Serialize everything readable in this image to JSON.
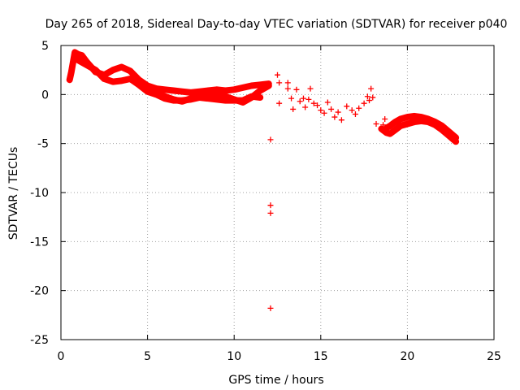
{
  "chart_data": {
    "type": "scatter",
    "title": "Day 265 of 2018, Sidereal Day-to-day VTEC variation (SDTVAR) for receiver p040",
    "xlabel": "GPS time / hours",
    "ylabel": "SDTVAR / TECUs",
    "xlim": [
      0,
      25
    ],
    "ylim": [
      -25,
      5
    ],
    "xticks": [
      0,
      5,
      10,
      15,
      20,
      25
    ],
    "yticks": [
      5,
      0,
      -5,
      -10,
      -15,
      -20,
      -25
    ],
    "grid": true,
    "marker": "+",
    "series": [
      {
        "name": "SDTVAR",
        "color": "#ff0000",
        "bands": [
          {
            "x": [
              0.5,
              0.6,
              0.8,
              1.0,
              1.2,
              1.5,
              1.8,
              2.0,
              2.5,
              3.0,
              3.5,
              4.0,
              4.5,
              5.0,
              5.5,
              6.0,
              6.5,
              7.0,
              7.5,
              8.0,
              8.5,
              9.0,
              9.5,
              10.0,
              10.5,
              11.0,
              11.5,
              12.0
            ],
            "y": [
              1.5,
              2.3,
              4.3,
              4.1,
              4.0,
              3.3,
              2.7,
              2.3,
              2.0,
              2.5,
              2.8,
              2.4,
              1.5,
              0.9,
              0.6,
              0.5,
              0.4,
              0.3,
              0.2,
              0.3,
              0.4,
              0.5,
              0.4,
              0.5,
              0.7,
              0.9,
              1.0,
              1.1
            ]
          },
          {
            "x": [
              1.0,
              1.5,
              2.0,
              2.5,
              3.0,
              3.5,
              4.0,
              4.5,
              5.0,
              5.5,
              6.0,
              6.5,
              7.0,
              7.5,
              8.0,
              8.5,
              9.0,
              9.5,
              10.0,
              10.5,
              11.0,
              11.5
            ],
            "y": [
              3.5,
              3.0,
              2.5,
              1.6,
              1.3,
              1.4,
              1.6,
              1.0,
              0.3,
              0.0,
              -0.4,
              -0.6,
              -0.6,
              -0.5,
              -0.3,
              -0.4,
              -0.5,
              -0.6,
              -0.6,
              -0.6,
              -0.2,
              -0.3
            ]
          },
          {
            "x": [
              5.5,
              6.0,
              6.5,
              7.0,
              7.5,
              8.0,
              8.5,
              9.0,
              9.5,
              10.0,
              10.5,
              11.0,
              11.5,
              12.0
            ],
            "y": [
              0.2,
              -0.2,
              -0.5,
              -0.7,
              -0.4,
              0.0,
              0.2,
              0.1,
              -0.2,
              -0.5,
              -0.8,
              -0.3,
              0.4,
              0.9
            ]
          },
          {
            "x": [
              18.5,
              18.8,
              19.0,
              19.3,
              19.6,
              20.0,
              20.4,
              20.8,
              21.2,
              21.6,
              22.0,
              22.4,
              22.8
            ],
            "y": [
              -3.5,
              -3.9,
              -4.0,
              -3.6,
              -3.2,
              -3.0,
              -2.8,
              -2.7,
              -2.8,
              -3.1,
              -3.6,
              -4.2,
              -4.8
            ]
          },
          {
            "x": [
              18.8,
              19.0,
              19.3,
              19.6,
              20.0,
              20.4,
              20.8,
              21.2,
              21.6,
              22.0,
              22.4,
              22.8
            ],
            "y": [
              -3.4,
              -3.2,
              -2.8,
              -2.5,
              -2.3,
              -2.2,
              -2.3,
              -2.5,
              -2.8,
              -3.2,
              -3.8,
              -4.4
            ]
          }
        ],
        "points": [
          {
            "x": 12.1,
            "y": -4.6
          },
          {
            "x": 12.1,
            "y": -11.3
          },
          {
            "x": 12.1,
            "y": -12.1
          },
          {
            "x": 12.1,
            "y": -21.8
          },
          {
            "x": 12.5,
            "y": 2.0
          },
          {
            "x": 12.6,
            "y": 1.2
          },
          {
            "x": 12.6,
            "y": -0.9
          },
          {
            "x": 13.1,
            "y": 1.2
          },
          {
            "x": 13.1,
            "y": 0.6
          },
          {
            "x": 13.3,
            "y": -0.4
          },
          {
            "x": 13.4,
            "y": -1.5
          },
          {
            "x": 13.6,
            "y": 0.5
          },
          {
            "x": 13.8,
            "y": -0.7
          },
          {
            "x": 14.0,
            "y": -0.4
          },
          {
            "x": 14.1,
            "y": -1.3
          },
          {
            "x": 14.3,
            "y": -0.5
          },
          {
            "x": 14.4,
            "y": 0.6
          },
          {
            "x": 14.6,
            "y": -0.9
          },
          {
            "x": 14.8,
            "y": -1.1
          },
          {
            "x": 15.0,
            "y": -1.6
          },
          {
            "x": 15.2,
            "y": -1.9
          },
          {
            "x": 15.4,
            "y": -0.8
          },
          {
            "x": 15.6,
            "y": -1.5
          },
          {
            "x": 15.8,
            "y": -2.3
          },
          {
            "x": 16.0,
            "y": -1.8
          },
          {
            "x": 16.2,
            "y": -2.6
          },
          {
            "x": 16.5,
            "y": -1.2
          },
          {
            "x": 16.8,
            "y": -1.6
          },
          {
            "x": 17.0,
            "y": -2.0
          },
          {
            "x": 17.2,
            "y": -1.4
          },
          {
            "x": 17.5,
            "y": -0.9
          },
          {
            "x": 17.7,
            "y": -0.2
          },
          {
            "x": 17.9,
            "y": 0.6
          },
          {
            "x": 17.8,
            "y": -0.6
          },
          {
            "x": 18.0,
            "y": -0.3
          },
          {
            "x": 18.2,
            "y": -3.0
          },
          {
            "x": 18.6,
            "y": -3.1
          },
          {
            "x": 18.7,
            "y": -2.5
          }
        ]
      }
    ]
  }
}
